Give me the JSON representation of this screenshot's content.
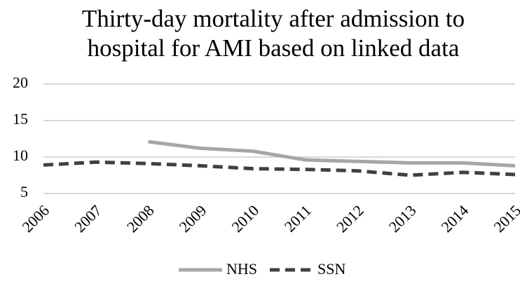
{
  "chart_data": {
    "type": "line",
    "title": "Thirty-day mortality after admission to hospital for AMI based on linked data",
    "categories": [
      "2006",
      "2007",
      "2008",
      "2009",
      "2010",
      "2011",
      "2012",
      "2013",
      "2014",
      "2015"
    ],
    "series": [
      {
        "name": "NHS",
        "color": "#a6a6a6",
        "dash": false,
        "values": [
          null,
          null,
          12.1,
          11.2,
          10.8,
          9.6,
          9.4,
          9.2,
          9.2,
          8.8
        ]
      },
      {
        "name": "SSN",
        "color": "#404040",
        "dash": true,
        "values": [
          8.9,
          9.3,
          9.1,
          8.8,
          8.4,
          8.3,
          8.1,
          7.5,
          7.9,
          7.6
        ]
      }
    ],
    "ylim": [
      5,
      20
    ],
    "yticks": [
      5,
      10,
      15,
      20
    ],
    "grid": true,
    "legend": "bottom"
  }
}
